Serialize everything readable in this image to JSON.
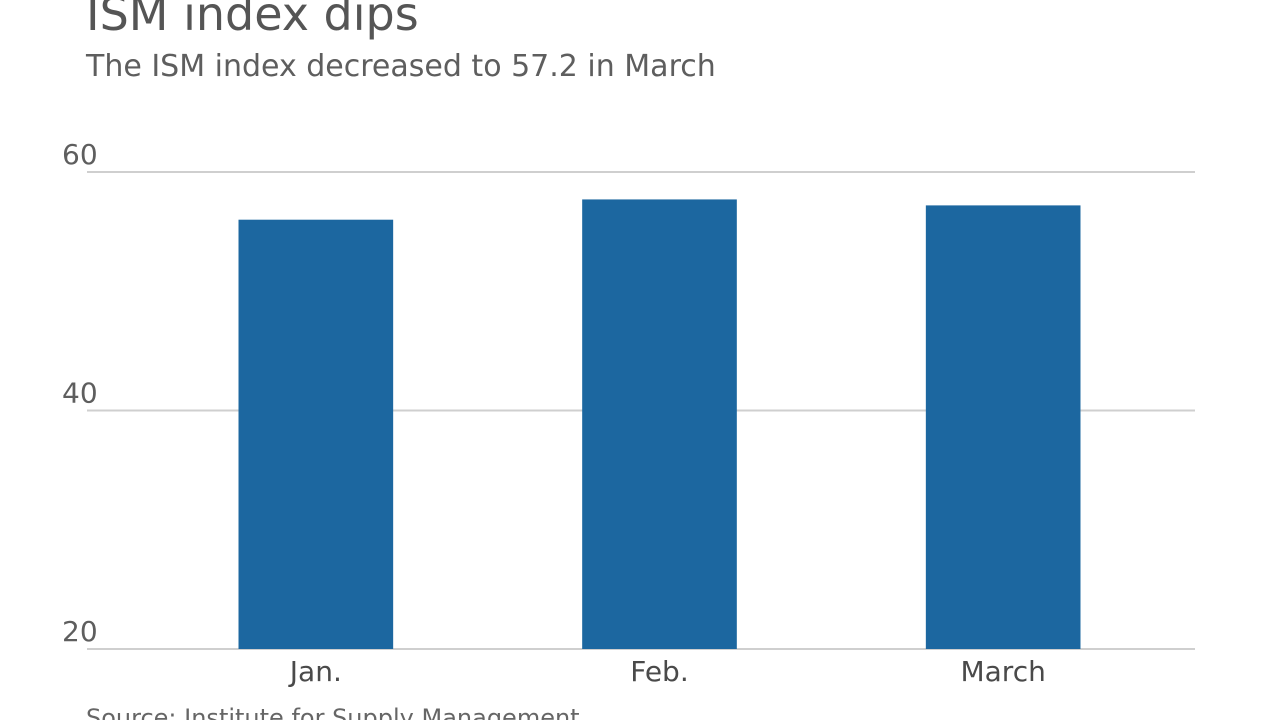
{
  "chart_data": {
    "type": "bar",
    "title": "ISM index dips",
    "subtitle": "The ISM index decreased to 57.2 in March",
    "source": "Source: Institute for Supply Management",
    "categories": [
      "Jan.",
      "Feb.",
      "March"
    ],
    "values": [
      56.0,
      57.7,
      57.2
    ],
    "color": "#1c67a0",
    "ylim": [
      20,
      60
    ],
    "yticks": [
      20,
      40,
      60
    ],
    "grid": true
  }
}
